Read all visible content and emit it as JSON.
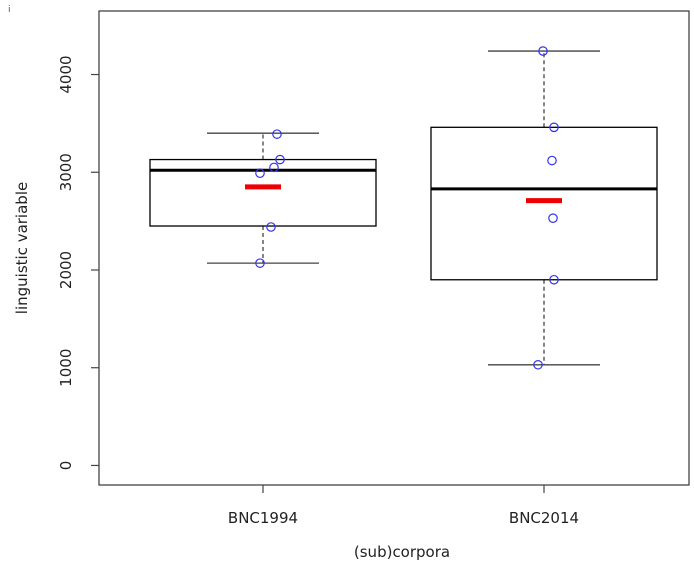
{
  "corner_mark": "i",
  "chart_data": {
    "type": "boxplot",
    "title": "",
    "xlabel": "(sub)corpora",
    "ylabel": "linguistic variable",
    "ylim": [
      -200,
      4650
    ],
    "yticks": [
      0,
      1000,
      2000,
      3000,
      4000
    ],
    "ytick_labels": [
      "0",
      "1000",
      "2000",
      "3000",
      "4000"
    ],
    "categories": [
      "BNC1994",
      "BNC2014"
    ],
    "boxes": [
      {
        "category": "BNC1994",
        "whisker_low": 2070,
        "q1": 2450,
        "median": 3020,
        "q3": 3130,
        "whisker_high": 3400,
        "mean": 2850,
        "points": [
          2070,
          2440,
          2990,
          3050,
          3130,
          3390
        ]
      },
      {
        "category": "BNC2014",
        "whisker_low": 1030,
        "q1": 1900,
        "median": 2830,
        "q3": 3460,
        "whisker_high": 4240,
        "mean": 2710,
        "points": [
          1030,
          1900,
          2530,
          3120,
          3460,
          4240
        ]
      }
    ],
    "grid": false,
    "legend": "none",
    "colors": {
      "box": "#000000",
      "median": "#000000",
      "mean": "#ee0000",
      "points": "#3333ee",
      "whisker": "#444444"
    }
  }
}
